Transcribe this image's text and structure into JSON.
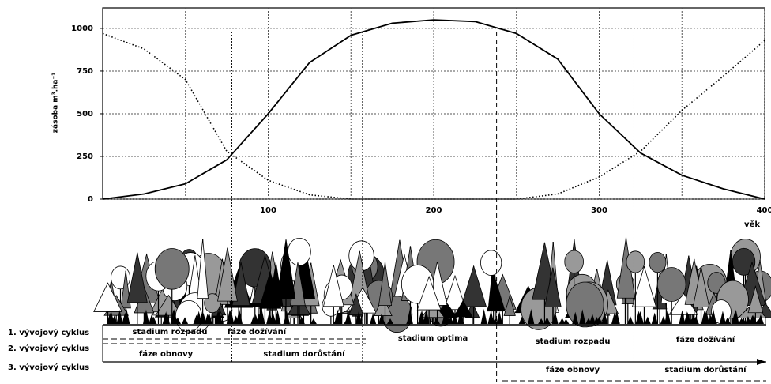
{
  "chart_data": {
    "type": "line",
    "y_label": "zásoba m³.ha⁻¹",
    "x_label": "věk",
    "x": [
      0,
      25,
      50,
      75,
      100,
      125,
      150,
      175,
      200,
      225,
      250,
      275,
      300,
      325,
      350,
      375,
      400
    ],
    "series": [
      {
        "color": "#000000",
        "style": "solid",
        "values": [
          0,
          30,
          90,
          230,
          500,
          800,
          960,
          1030,
          1050,
          1040,
          970,
          820,
          500,
          270,
          140,
          60,
          0
        ]
      },
      {
        "color": "#000000",
        "style": "dotted",
        "values": [
          970,
          880,
          700,
          280,
          110,
          25,
          0,
          0,
          0,
          0,
          0,
          30,
          130,
          280,
          520,
          720,
          930
        ]
      }
    ],
    "xlim": [
      0,
      400
    ],
    "xticks": [
      100,
      200,
      300,
      400
    ],
    "x_minor_ticks": [
      50,
      150,
      250,
      350
    ],
    "ylim": [
      0,
      1120
    ],
    "yticks": [
      0,
      250,
      500,
      750,
      1000
    ],
    "grid": true,
    "x_markers": [
      78,
      157,
      238,
      321
    ]
  },
  "cycles": {
    "rows": [
      "1. vývojový cyklus",
      "2. vývojový cyklus",
      "3. vývojový cyklus"
    ],
    "segments": [
      "stadium rozpadu",
      "fáze dožívání",
      "stadium optima",
      "stadium rozpadu",
      "fáze dožívání",
      "fáze obnovy",
      "stadium dorůstání",
      "fáze obnovy",
      "stadium dorůstání"
    ]
  }
}
